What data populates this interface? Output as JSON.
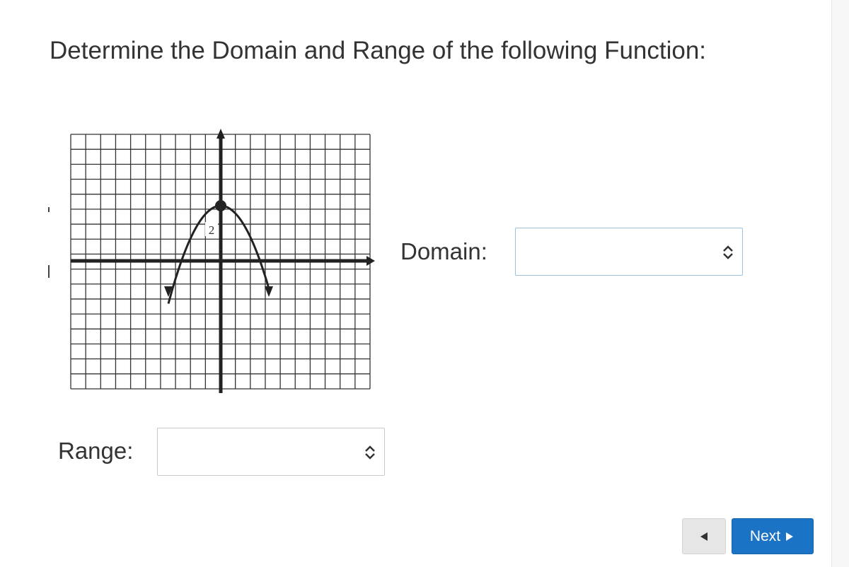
{
  "header": {
    "title": "Determine the Domain and Range of the following Function:"
  },
  "graph": {
    "label": "2"
  },
  "form": {
    "domain_label": "Domain:",
    "range_label": "Range:"
  },
  "navigation": {
    "next": "Next"
  }
}
